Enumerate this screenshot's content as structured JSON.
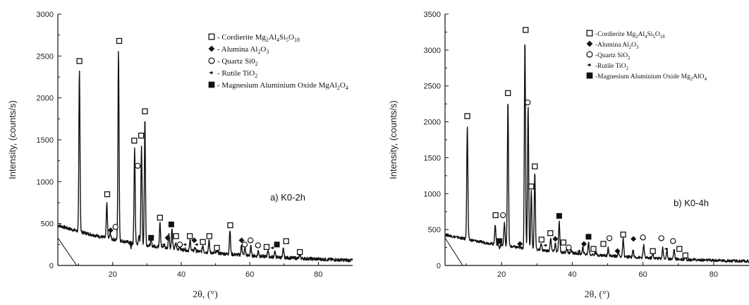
{
  "chart_data": [
    {
      "type": "line",
      "panel_label": "a) K0-2h",
      "xlabel": "2θ, (°)",
      "ylabel": "Intensity, (counts/s)",
      "xlim": [
        4,
        90
      ],
      "ylim": [
        0,
        3000
      ],
      "xticks": [
        "20",
        "40",
        "60",
        "80"
      ],
      "yticks": [
        "0",
        "500",
        "1000",
        "1500",
        "2000",
        "2500",
        "3000"
      ],
      "background": "decreasing baseline from ~480 at 4° to ~60 at 90°",
      "peaks": [
        {
          "x": 10.3,
          "y": 2330
        },
        {
          "x": 18.3,
          "y": 740
        },
        {
          "x": 19.3,
          "y": 390
        },
        {
          "x": 21.7,
          "y": 2570
        },
        {
          "x": 25.4,
          "y": 210
        },
        {
          "x": 26.4,
          "y": 1400
        },
        {
          "x": 27.7,
          "y": 350
        },
        {
          "x": 28.4,
          "y": 1430
        },
        {
          "x": 29.4,
          "y": 1760
        },
        {
          "x": 31.2,
          "y": 300
        },
        {
          "x": 33.8,
          "y": 530
        },
        {
          "x": 35.0,
          "y": 250
        },
        {
          "x": 36.4,
          "y": 390
        },
        {
          "x": 37.3,
          "y": 440
        },
        {
          "x": 38.4,
          "y": 270
        },
        {
          "x": 39.5,
          "y": 230
        },
        {
          "x": 41.0,
          "y": 200
        },
        {
          "x": 42.6,
          "y": 300
        },
        {
          "x": 44.0,
          "y": 220
        },
        {
          "x": 46.3,
          "y": 240
        },
        {
          "x": 48.1,
          "y": 300
        },
        {
          "x": 50.5,
          "y": 180
        },
        {
          "x": 54.2,
          "y": 430
        },
        {
          "x": 57.6,
          "y": 250
        },
        {
          "x": 58.6,
          "y": 220
        },
        {
          "x": 60.3,
          "y": 230
        },
        {
          "x": 62.5,
          "y": 180
        },
        {
          "x": 65.3,
          "y": 190
        },
        {
          "x": 67.3,
          "y": 170
        },
        {
          "x": 69.8,
          "y": 200
        },
        {
          "x": 74.6,
          "y": 140
        }
      ],
      "markers": [
        {
          "x": 10.3,
          "y": 2440,
          "sym": "square"
        },
        {
          "x": 18.4,
          "y": 850,
          "sym": "square"
        },
        {
          "x": 19.4,
          "y": 420,
          "sym": "diamond"
        },
        {
          "x": 20.8,
          "y": 460,
          "sym": "circle"
        },
        {
          "x": 21.9,
          "y": 2680,
          "sym": "square"
        },
        {
          "x": 25.4,
          "y": 260,
          "sym": "diamond"
        },
        {
          "x": 26.3,
          "y": 1490,
          "sym": "square"
        },
        {
          "x": 27.3,
          "y": 1190,
          "sym": "circle"
        },
        {
          "x": 28.3,
          "y": 1550,
          "sym": "square"
        },
        {
          "x": 29.4,
          "y": 1840,
          "sym": "square"
        },
        {
          "x": 31.2,
          "y": 330,
          "sym": "filled"
        },
        {
          "x": 33.8,
          "y": 570,
          "sym": "square"
        },
        {
          "x": 35.0,
          "y": 250,
          "sym": "dot"
        },
        {
          "x": 36.0,
          "y": 330,
          "sym": "diamond"
        },
        {
          "x": 37.1,
          "y": 490,
          "sym": "filled"
        },
        {
          "x": 38.5,
          "y": 350,
          "sym": "square"
        },
        {
          "x": 39.6,
          "y": 250,
          "sym": "circle"
        },
        {
          "x": 41.2,
          "y": 250,
          "sym": "dot"
        },
        {
          "x": 42.5,
          "y": 350,
          "sym": "square"
        },
        {
          "x": 43.8,
          "y": 300,
          "sym": "diamond"
        },
        {
          "x": 44.6,
          "y": 250,
          "sym": "dot"
        },
        {
          "x": 46.3,
          "y": 280,
          "sym": "square"
        },
        {
          "x": 48.2,
          "y": 350,
          "sym": "square"
        },
        {
          "x": 50.4,
          "y": 210,
          "sym": "square"
        },
        {
          "x": 54.3,
          "y": 480,
          "sym": "square"
        },
        {
          "x": 57.6,
          "y": 300,
          "sym": "diamond"
        },
        {
          "x": 58.5,
          "y": 250,
          "sym": "circle"
        },
        {
          "x": 60.2,
          "y": 300,
          "sym": "circle"
        },
        {
          "x": 62.4,
          "y": 240,
          "sym": "circle"
        },
        {
          "x": 64.9,
          "y": 220,
          "sym": "square"
        },
        {
          "x": 66.7,
          "y": 210,
          "sym": "dot"
        },
        {
          "x": 67.9,
          "y": 250,
          "sym": "filled"
        },
        {
          "x": 70.6,
          "y": 290,
          "sym": "square"
        },
        {
          "x": 74.6,
          "y": 160,
          "sym": "square"
        }
      ],
      "legend": [
        {
          "sym": "square",
          "label": "- Cordierite Mg",
          "sub": [
            [
              "2",
              "Al"
            ],
            [
              "4",
              "Si"
            ],
            [
              "5",
              "O"
            ],
            [
              "18",
              ""
            ]
          ]
        },
        {
          "sym": "diamond",
          "label": "- Alumina Al",
          "sub": [
            [
              "2",
              "O"
            ],
            [
              "3",
              ""
            ]
          ]
        },
        {
          "sym": "circle",
          "label": "- Quartz Si0",
          "sub": [
            [
              "2",
              ""
            ]
          ]
        },
        {
          "sym": "dot",
          "label": "- Rutile TiO",
          "sub": [
            [
              "2",
              ""
            ]
          ]
        },
        {
          "sym": "filled",
          "label": "- Magnesium Aluminium Oxide MgAl",
          "sub": [
            [
              "2",
              "O"
            ],
            [
              "4",
              ""
            ]
          ]
        }
      ]
    },
    {
      "type": "line",
      "panel_label": "b) K0-4h",
      "xlabel": "2θ, (°)",
      "ylabel": "Intensity, (counts/s)",
      "xlim": [
        4,
        90
      ],
      "ylim": [
        0,
        3500
      ],
      "xticks": [
        "20",
        "40",
        "60",
        "80"
      ],
      "yticks": [
        "0",
        "500",
        "1000",
        "1500",
        "2000",
        "2500",
        "3000",
        "3500"
      ],
      "background": "decreasing baseline from ~430 at 4° to ~60 at 90°",
      "peaks": [
        {
          "x": 10.3,
          "y": 1950
        },
        {
          "x": 18.2,
          "y": 580
        },
        {
          "x": 19.4,
          "y": 250
        },
        {
          "x": 20.8,
          "y": 600
        },
        {
          "x": 21.8,
          "y": 2290
        },
        {
          "x": 25.5,
          "y": 240
        },
        {
          "x": 26.6,
          "y": 3150
        },
        {
          "x": 27.5,
          "y": 2230
        },
        {
          "x": 28.4,
          "y": 1040
        },
        {
          "x": 29.4,
          "y": 1300
        },
        {
          "x": 31.2,
          "y": 320
        },
        {
          "x": 33.9,
          "y": 390
        },
        {
          "x": 35.2,
          "y": 310
        },
        {
          "x": 36.3,
          "y": 610
        },
        {
          "x": 38.5,
          "y": 240
        },
        {
          "x": 39.8,
          "y": 210
        },
        {
          "x": 43.0,
          "y": 250
        },
        {
          "x": 44.6,
          "y": 320
        },
        {
          "x": 46.6,
          "y": 190
        },
        {
          "x": 50.2,
          "y": 250
        },
        {
          "x": 53.0,
          "y": 200
        },
        {
          "x": 54.4,
          "y": 370
        },
        {
          "x": 57.2,
          "y": 220
        },
        {
          "x": 60.2,
          "y": 290
        },
        {
          "x": 62.8,
          "y": 160
        },
        {
          "x": 65.6,
          "y": 250
        },
        {
          "x": 66.8,
          "y": 200
        },
        {
          "x": 68.8,
          "y": 230
        },
        {
          "x": 72.0,
          "y": 130
        }
      ],
      "markers": [
        {
          "x": 10.3,
          "y": 2080,
          "sym": "square"
        },
        {
          "x": 18.3,
          "y": 700,
          "sym": "square"
        },
        {
          "x": 19.4,
          "y": 340,
          "sym": "filled"
        },
        {
          "x": 20.4,
          "y": 700,
          "sym": "circle"
        },
        {
          "x": 21.8,
          "y": 2400,
          "sym": "square"
        },
        {
          "x": 25.2,
          "y": 300,
          "sym": "diamond"
        },
        {
          "x": 26.8,
          "y": 3280,
          "sym": "square"
        },
        {
          "x": 27.4,
          "y": 2270,
          "sym": "circle"
        },
        {
          "x": 28.4,
          "y": 1100,
          "sym": "square"
        },
        {
          "x": 29.4,
          "y": 1380,
          "sym": "square"
        },
        {
          "x": 31.3,
          "y": 360,
          "sym": "square"
        },
        {
          "x": 32.5,
          "y": 280,
          "sym": "dot"
        },
        {
          "x": 33.8,
          "y": 450,
          "sym": "square"
        },
        {
          "x": 35.2,
          "y": 370,
          "sym": "diamond"
        },
        {
          "x": 36.3,
          "y": 690,
          "sym": "filled"
        },
        {
          "x": 37.5,
          "y": 320,
          "sym": "square"
        },
        {
          "x": 39.0,
          "y": 250,
          "sym": "circle"
        },
        {
          "x": 42.0,
          "y": 200,
          "sym": "dot"
        },
        {
          "x": 43.3,
          "y": 300,
          "sym": "diamond"
        },
        {
          "x": 44.6,
          "y": 400,
          "sym": "filled"
        },
        {
          "x": 46.0,
          "y": 230,
          "sym": "square"
        },
        {
          "x": 48.8,
          "y": 300,
          "sym": "square"
        },
        {
          "x": 50.5,
          "y": 380,
          "sym": "circle"
        },
        {
          "x": 52.8,
          "y": 200,
          "sym": "diamond"
        },
        {
          "x": 54.4,
          "y": 430,
          "sym": "square"
        },
        {
          "x": 57.3,
          "y": 370,
          "sym": "diamond"
        },
        {
          "x": 60.0,
          "y": 390,
          "sym": "circle"
        },
        {
          "x": 62.8,
          "y": 200,
          "sym": "square"
        },
        {
          "x": 65.2,
          "y": 380,
          "sym": "circle"
        },
        {
          "x": 66.7,
          "y": 230,
          "sym": "dot"
        },
        {
          "x": 68.5,
          "y": 340,
          "sym": "circle"
        },
        {
          "x": 70.3,
          "y": 230,
          "sym": "square"
        },
        {
          "x": 72.0,
          "y": 140,
          "sym": "square"
        }
      ],
      "legend": [
        {
          "sym": "square",
          "label": "-Cordierite Mg",
          "sub": [
            [
              "2",
              "Al"
            ],
            [
              "4",
              "Si"
            ],
            [
              "5",
              "O"
            ],
            [
              "18",
              ""
            ]
          ]
        },
        {
          "sym": "diamond",
          "label": "-Alumina Al",
          "sub": [
            [
              "2",
              "O"
            ],
            [
              "3",
              ""
            ]
          ]
        },
        {
          "sym": "circle",
          "label": "-Quartz SiO",
          "sub": [
            [
              "2",
              ""
            ]
          ]
        },
        {
          "sym": "dot",
          "label": "-Rutile TiO",
          "sub": [
            [
              "2",
              ""
            ]
          ]
        },
        {
          "sym": "filled",
          "label": "-Magnesium Aluminium Oxide Mg",
          "sub": [
            [
              "2",
              "AlO"
            ],
            [
              "4",
              ""
            ]
          ]
        }
      ]
    }
  ]
}
